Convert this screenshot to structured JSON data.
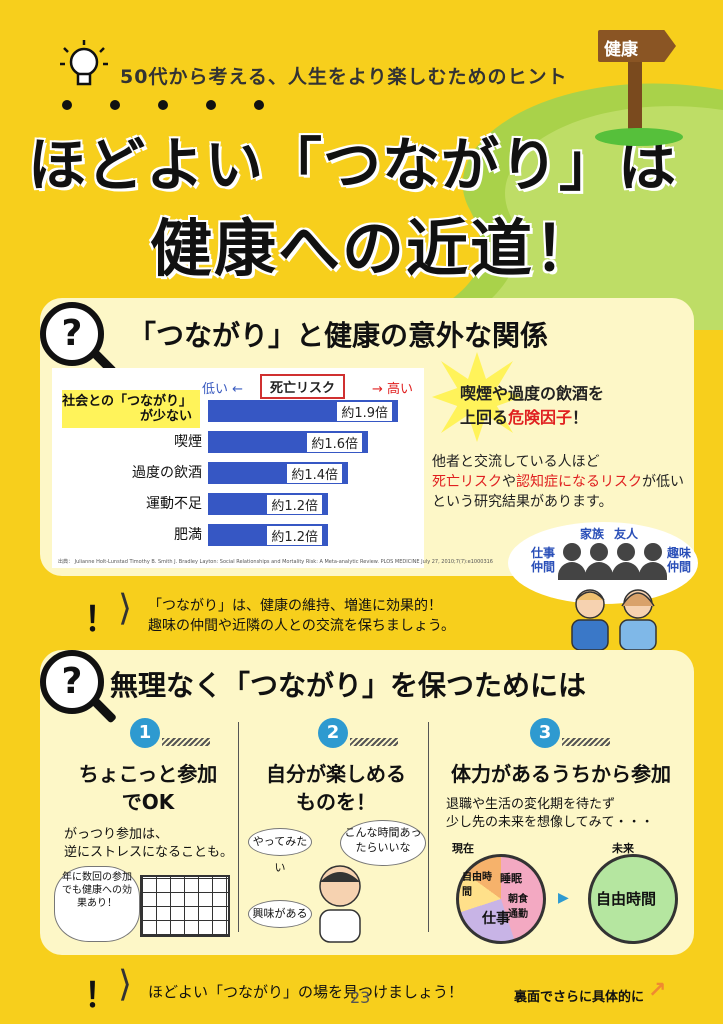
{
  "header": {
    "subtitle": "50代から考える、人生をより楽しむためのヒント",
    "title_line1": "ほどよい「つながり」は",
    "title_line2": "健康への近道！",
    "sign_label": "健康",
    "icons": [
      "lightbulb-icon",
      "signpost-icon"
    ]
  },
  "section1": {
    "title": "「つながり」と健康の意外な関係",
    "chart_data": {
      "type": "bar",
      "orientation": "horizontal",
      "title": "死亡リスク",
      "scale_low_label": "低い ←",
      "scale_high_label": "→ 高い",
      "categories": [
        "社会との「つながり」が少ない",
        "喫煙",
        "過度の飲酒",
        "運動不足",
        "肥満"
      ],
      "values": [
        1.9,
        1.6,
        1.4,
        1.2,
        1.2
      ],
      "value_labels": [
        "約1.9倍",
        "約1.6倍",
        "約1.4倍",
        "約1.2倍",
        "約1.2倍"
      ],
      "highlight_category": "社会との「つながり」が少ない",
      "bar_color": "#3657c4",
      "source": "出典： Julianne Holt-Lunstad Timothy B. Smith J. Bradley Layton: Social Relationships and Mortality Risk: A Meta-analytic Review. PLOS MEDICINE July 27, 2010;7(7):e1000316"
    },
    "callout_line1": "喫煙や過度の飲酒を",
    "callout_line2_pre": "上回る",
    "callout_line2_red": "危険因子",
    "callout_line2_post": "！",
    "info_line1": "他者と交流している人ほど",
    "info_line2_red1": "死亡リスク",
    "info_line2_mid": "や",
    "info_line2_red2": "認知症になるリスク",
    "info_line2_post": "が低い",
    "info_line3": "という研究結果があります。",
    "people_labels": [
      "仕事仲間",
      "家族",
      "友人",
      "趣味仲間"
    ],
    "accent_red": "#e02020"
  },
  "tip1": {
    "mark": "！",
    "line1": "「つながり」は、健康の維持、増進に効果的！",
    "line2": "趣味の仲間や近隣の人との交流を保ちましょう。"
  },
  "section2": {
    "title": "無理なく「つながり」を保つためには",
    "columns": [
      {
        "num": "1",
        "heading_line1": "ちょこっと参加",
        "heading_line2": "でOK",
        "body_line1": "がっつり参加は、",
        "body_line2": "逆にストレスになることも。",
        "bubble": "年に数回の参加でも健康への効果あり！"
      },
      {
        "num": "2",
        "heading_line1": "自分が楽しめる",
        "heading_line2": "ものを！",
        "bubble1": "やってみたい",
        "bubble2": "こんな時間あったらいいな",
        "bubble3": "興味がある"
      },
      {
        "num": "3",
        "heading_line1": "体力があるうちから参加",
        "body_line1": "退職や生活の変化期を待たず",
        "body_line2": "少し先の未来を想像してみて・・・",
        "now_label": "現在",
        "future_label": "未来",
        "now_segments": [
          "自由時間",
          "睡眠",
          "朝食通勤",
          "仕事"
        ],
        "future_segment": "自由時間"
      }
    ],
    "accent_blue": "#2e9ad0"
  },
  "tip2": {
    "mark": "！",
    "line": "ほどよい「つながり」の場を見つけましょう！"
  },
  "footer": {
    "page_number": "23",
    "back_note": "裏面でさらに具体的に",
    "arrow": "↗"
  }
}
